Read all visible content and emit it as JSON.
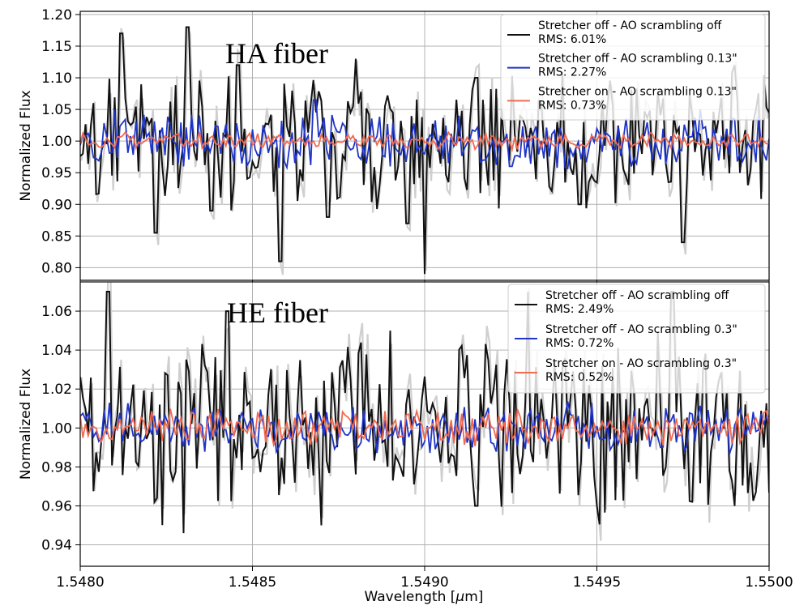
{
  "figure": {
    "xlabel": "Wavelength [$\\mu$m]",
    "xlabel_prefix": "Wavelength [",
    "xlabel_mu": "μ",
    "xlabel_suffix": "m]"
  },
  "chart_data": [
    {
      "type": "line",
      "panel_label": "HA fiber",
      "ylabel": "Normalized Flux",
      "xlim": [
        1.548,
        1.55
      ],
      "ylim": [
        0.78,
        1.205
      ],
      "xticks": [
        1.548,
        1.5485,
        1.549,
        1.5495,
        1.55
      ],
      "yticks": [
        0.8,
        0.85,
        0.9,
        0.95,
        1.0,
        1.05,
        1.1,
        1.15,
        1.2
      ],
      "ytick_labels": [
        "0.80",
        "0.85",
        "0.90",
        "0.95",
        "1.00",
        "1.05",
        "1.10",
        "1.15",
        "1.20"
      ],
      "grid": true,
      "legend_position": "top-right",
      "series": [
        {
          "legend": [
            "Stretcher off - AO scrambling off",
            "RMS: 6.01%"
          ],
          "color": "#111111",
          "rms": 0.0601,
          "x": [
            1.548,
            1.54812,
            1.54822,
            1.54831,
            1.54838,
            1.54846,
            1.54858,
            1.54872,
            1.5488,
            1.54895,
            1.549,
            1.54915,
            1.5493,
            1.54945,
            1.5496,
            1.54975,
            1.5499
          ],
          "y": [
            0.98,
            1.17,
            0.855,
            1.18,
            0.89,
            1.12,
            0.81,
            0.88,
            1.13,
            0.87,
            0.79,
            1.1,
            1.06,
            0.9,
            1.0,
            0.84,
            1.12
          ]
        },
        {
          "legend": [
            "Stretcher off - AO scrambling 0.13\"",
            "RMS: 2.27%"
          ],
          "color": "#1f35c7",
          "rms": 0.0227,
          "x": [
            1.548,
            1.5481,
            1.5483,
            1.5485,
            1.54868,
            1.5489,
            1.5491,
            1.54925,
            1.5494,
            1.5496,
            1.5498,
            1.55
          ],
          "y": [
            0.98,
            1.05,
            0.96,
            1.03,
            1.065,
            0.96,
            1.04,
            0.96,
            1.03,
            0.96,
            1.05,
            0.98
          ]
        },
        {
          "legend": [
            "Stretcher on - AO scrambling 0.13\"",
            "RMS: 0.73%"
          ],
          "color": "#f06a50",
          "rms": 0.0073,
          "x": [
            1.548,
            1.5485,
            1.549,
            1.5495,
            1.55
          ],
          "y": [
            1.0,
            1.0,
            1.0,
            1.0,
            1.0
          ]
        }
      ]
    },
    {
      "type": "line",
      "panel_label": "HE fiber",
      "ylabel": "Normalized Flux",
      "xlim": [
        1.548,
        1.55
      ],
      "ylim": [
        0.929,
        1.075
      ],
      "xticks": [
        1.548,
        1.5485,
        1.549,
        1.5495,
        1.55
      ],
      "xtick_labels": [
        "1.5480",
        "1.5485",
        "1.5490",
        "1.5495",
        "1.5500"
      ],
      "yticks": [
        0.94,
        0.96,
        0.98,
        1.0,
        1.02,
        1.04,
        1.06
      ],
      "ytick_labels": [
        "0.94",
        "0.96",
        "0.98",
        "1.00",
        "1.02",
        "1.04",
        "1.06"
      ],
      "grid": true,
      "legend_position": "top-right",
      "series": [
        {
          "legend": [
            "Stretcher off - AO scrambling off",
            "RMS: 2.49%"
          ],
          "color": "#111111",
          "rms": 0.0249,
          "x": [
            1.548,
            1.54808,
            1.5483,
            1.54843,
            1.5487,
            1.5489,
            1.54915,
            1.5493,
            1.5495,
            1.54972,
            1.5499,
            1.55
          ],
          "y": [
            1.0,
            1.07,
            0.946,
            1.06,
            0.95,
            1.05,
            0.96,
            1.07,
            0.96,
            1.07,
            0.96,
            1.025
          ]
        },
        {
          "legend": [
            "Stretcher off - AO scrambling 0.3\"",
            "RMS: 0.72%"
          ],
          "color": "#1f35c7",
          "rms": 0.0072,
          "x": [
            1.548,
            1.5485,
            1.549,
            1.5495,
            1.55
          ],
          "y": [
            1.0,
            1.0,
            1.0,
            1.0,
            1.0
          ]
        },
        {
          "legend": [
            "Stretcher on - AO scrambling 0.3\"",
            "RMS: 0.52%"
          ],
          "color": "#f06a50",
          "rms": 0.0052,
          "x": [
            1.548,
            1.5485,
            1.549,
            1.5495,
            1.55
          ],
          "y": [
            1.0,
            1.0,
            1.0,
            1.0,
            1.0
          ]
        }
      ]
    }
  ]
}
